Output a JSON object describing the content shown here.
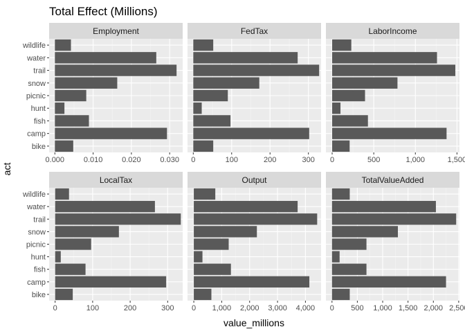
{
  "chart_data": {
    "type": "bar",
    "orientation": "horizontal",
    "title": "Total Effect (Millions)",
    "xlabel": "value_millions",
    "ylabel": "act",
    "categories": [
      "bike",
      "camp",
      "fish",
      "hunt",
      "picnic",
      "snow",
      "trail",
      "water",
      "wildlife"
    ],
    "grid": true,
    "legend": "none",
    "facet_layout": "2 rows x 3 columns, free x scales",
    "colors": {
      "bar": "#595959",
      "panel_bg": "#ebebeb",
      "strip_bg": "#d9d9d9",
      "grid_major": "#ffffff",
      "grid_minor": "#f4f4f4",
      "text": "#1a1a1a",
      "axis_text": "#4d4d4d"
    },
    "facets": [
      {
        "name": "Employment",
        "xlim": [
          -0.0015,
          0.0334
        ],
        "ticks": [
          0.0,
          0.01,
          0.02,
          0.03
        ],
        "tick_labels": [
          "0.000",
          "0.010",
          "0.020",
          "0.030"
        ],
        "values": [
          0.0048,
          0.0293,
          0.0089,
          0.0025,
          0.0082,
          0.0163,
          0.0318,
          0.0265,
          0.0042
        ]
      },
      {
        "name": "FedTax",
        "xlim": [
          -15,
          333
        ],
        "ticks": [
          0,
          100,
          200,
          300
        ],
        "tick_labels": [
          "0",
          "100",
          "200",
          "300"
        ],
        "values": [
          52,
          302,
          97,
          22,
          90,
          172,
          328,
          272,
          52
        ]
      },
      {
        "name": "LaborIncome",
        "xlim": [
          -75,
          1530
        ],
        "ticks": [
          0,
          500,
          1000,
          1500
        ],
        "tick_labels": [
          "0",
          "500",
          "1,000",
          "1,500"
        ],
        "values": [
          210,
          1375,
          430,
          100,
          395,
          785,
          1480,
          1260,
          230
        ]
      },
      {
        "name": "LocalTax",
        "xlim": [
          -16,
          340
        ],
        "ticks": [
          0,
          100,
          200,
          300
        ],
        "tick_labels": [
          "0",
          "100",
          "200",
          "300"
        ],
        "values": [
          47,
          296,
          81,
          15,
          96,
          170,
          335,
          266,
          37
        ]
      },
      {
        "name": "Output",
        "xlim": [
          -225,
          4560
        ],
        "ticks": [
          0,
          1000,
          2000,
          3000,
          4000
        ],
        "tick_labels": [
          "0",
          "1,000",
          "2,000",
          "3,000",
          "4,000"
        ],
        "values": [
          630,
          4140,
          1330,
          310,
          1250,
          2260,
          4420,
          3720,
          770
        ]
      },
      {
        "name": "TotalValueAdded",
        "xlim": [
          -120,
          2515
        ],
        "ticks": [
          0,
          500,
          1000,
          1500,
          2000,
          2500
        ],
        "tick_labels": [
          "0",
          "500",
          "1,000",
          "1,500",
          "2,000",
          "2,500"
        ],
        "values": [
          350,
          2250,
          680,
          150,
          680,
          1300,
          2450,
          2050,
          350
        ]
      }
    ]
  }
}
